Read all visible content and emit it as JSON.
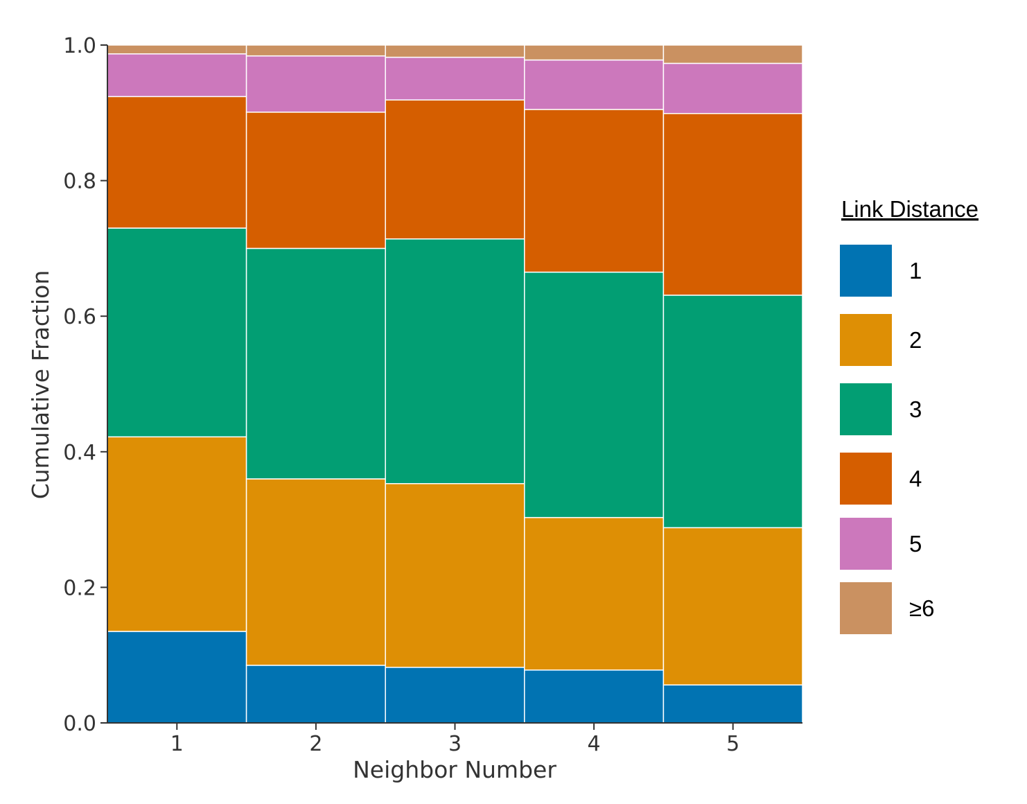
{
  "chart_data": {
    "type": "bar",
    "stacked": true,
    "title": "",
    "xlabel": "Neighbor Number",
    "ylabel": "Cumulative Fraction",
    "ylim": [
      0,
      1.0
    ],
    "yticks": [
      "0.0",
      "0.2",
      "0.4",
      "0.6",
      "0.8",
      "1.0"
    ],
    "categories": [
      "1",
      "2",
      "3",
      "4",
      "5"
    ],
    "legend_title": "Link Distance",
    "legend_position": "right",
    "series": [
      {
        "name": "1",
        "color": "#0173b2",
        "values": [
          0.135,
          0.085,
          0.082,
          0.078,
          0.056
        ]
      },
      {
        "name": "2",
        "color": "#de8f05",
        "values": [
          0.287,
          0.275,
          0.271,
          0.225,
          0.232
        ]
      },
      {
        "name": "3",
        "color": "#029e73",
        "values": [
          0.308,
          0.34,
          0.361,
          0.362,
          0.343
        ]
      },
      {
        "name": "4",
        "color": "#d55e00",
        "values": [
          0.194,
          0.201,
          0.205,
          0.24,
          0.268
        ]
      },
      {
        "name": "5",
        "color": "#cc78bc",
        "values": [
          0.063,
          0.083,
          0.063,
          0.073,
          0.074
        ]
      },
      {
        "name": "≥6",
        "color": "#ca9161",
        "values": [
          0.013,
          0.016,
          0.018,
          0.022,
          0.027
        ]
      }
    ]
  }
}
